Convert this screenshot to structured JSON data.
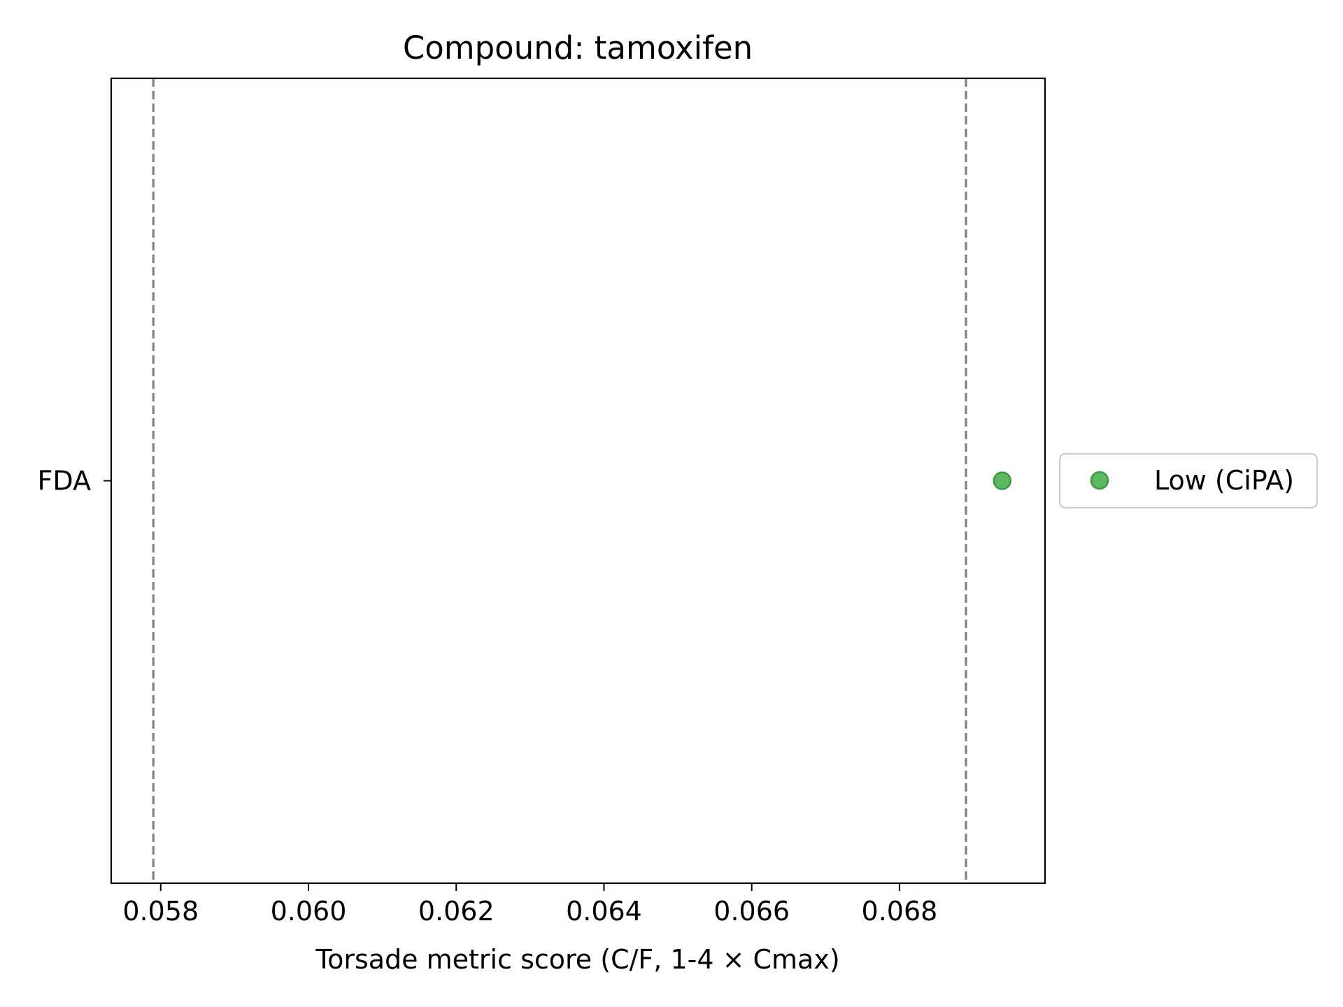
{
  "chart_data": {
    "type": "scatter",
    "title": "Compound: tamoxifen",
    "xlabel": "Torsade metric score (C/F, 1-4 × Cmax)",
    "ylabel": "",
    "xlim": [
      0.05733,
      0.06997
    ],
    "x_ticks": [
      "0.058",
      "0.060",
      "0.062",
      "0.064",
      "0.066",
      "0.068"
    ],
    "x_tick_values": [
      0.058,
      0.06,
      0.062,
      0.064,
      0.066,
      0.068
    ],
    "categories": [
      "FDA"
    ],
    "series": [
      {
        "name": "Low (CiPA)",
        "color": "#4caf50",
        "marker": "circle",
        "points": [
          {
            "x": 0.06939,
            "y": "FDA"
          }
        ]
      }
    ],
    "reference_lines": [
      {
        "x": 0.0579,
        "style": "dashed",
        "color": "#808080"
      },
      {
        "x": 0.0689,
        "style": "dashed",
        "color": "#808080"
      }
    ],
    "grid": false,
    "legend_position": "outside-right"
  }
}
